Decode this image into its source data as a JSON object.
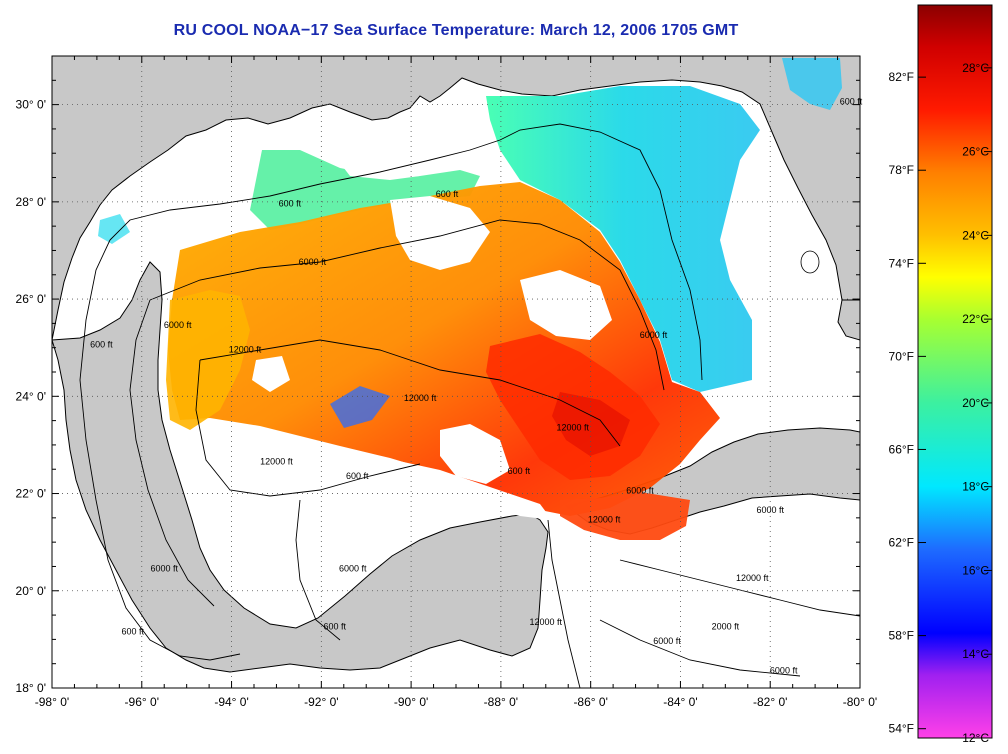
{
  "title": "RU COOL  NOAA−17  Sea Surface Temperature:  March 12, 2006 1705 GMT",
  "map": {
    "type": "satellite sea surface temperature map",
    "region": "Gulf of Mexico",
    "lon_range": [
      -98,
      -80
    ],
    "lat_range": [
      18,
      31
    ],
    "grid": "dotted",
    "land_color": "#c8c8c8",
    "cloud_color": "#ffffff",
    "lon_ticks": [
      "-98° 0'",
      "-96° 0'",
      "-94° 0'",
      "-92° 0'",
      "-90° 0'",
      "-88° 0'",
      "-86° 0'",
      "-84° 0'",
      "-82° 0'",
      "-80° 0'"
    ],
    "lat_ticks": [
      "30° 0'",
      "28° 0'",
      "26° 0'",
      "24° 0'",
      "22° 0'",
      "20° 0'",
      "18° 0'"
    ],
    "contour_labels": [
      {
        "text": "600 ft",
        "lon": -92.7,
        "lat": 27.9
      },
      {
        "text": "6000 ft",
        "lon": -92.2,
        "lat": 26.7
      },
      {
        "text": "6000 ft",
        "lon": -95.2,
        "lat": 25.4
      },
      {
        "text": "600 ft",
        "lon": -96.9,
        "lat": 25.0
      },
      {
        "text": "12000 ft",
        "lon": -93.7,
        "lat": 24.9
      },
      {
        "text": "600 ft",
        "lon": -89.2,
        "lat": 28.1
      },
      {
        "text": "6000 ft",
        "lon": -84.6,
        "lat": 25.2
      },
      {
        "text": "600 ft",
        "lon": -80.2,
        "lat": 30.0
      },
      {
        "text": "12000 ft",
        "lon": -86.4,
        "lat": 23.3
      },
      {
        "text": "12000 ft",
        "lon": -89.8,
        "lat": 23.9
      },
      {
        "text": "6000 ft",
        "lon": -84.9,
        "lat": 22.0
      },
      {
        "text": "600 ft",
        "lon": -87.6,
        "lat": 22.4
      },
      {
        "text": "12000 ft",
        "lon": -93.0,
        "lat": 22.6
      },
      {
        "text": "600 ft",
        "lon": -91.2,
        "lat": 22.3
      },
      {
        "text": "12000 ft",
        "lon": -85.7,
        "lat": 21.4
      },
      {
        "text": "6000 ft",
        "lon": -82.0,
        "lat": 21.6
      },
      {
        "text": "6000 ft",
        "lon": -95.5,
        "lat": 20.4
      },
      {
        "text": "6000 ft",
        "lon": -91.3,
        "lat": 20.4
      },
      {
        "text": "600 ft",
        "lon": -96.2,
        "lat": 19.1
      },
      {
        "text": "600 ft",
        "lon": -91.7,
        "lat": 19.2
      },
      {
        "text": "12000 ft",
        "lon": -87.0,
        "lat": 19.3
      },
      {
        "text": "12000 ft",
        "lon": -82.4,
        "lat": 20.2
      },
      {
        "text": "2000 ft",
        "lon": -83.0,
        "lat": 19.2
      },
      {
        "text": "6000 ft",
        "lon": -84.3,
        "lat": 18.9
      },
      {
        "text": "6000 ft",
        "lon": -81.7,
        "lat": 18.3
      }
    ]
  },
  "colorbar": {
    "celsius_range": [
      12,
      29.5
    ],
    "fahrenheit_range": [
      53.6,
      85.1
    ],
    "celsius_labels": [
      {
        "text": "28°C",
        "value": 28
      },
      {
        "text": "26°C",
        "value": 26
      },
      {
        "text": "24°C",
        "value": 24
      },
      {
        "text": "22°C",
        "value": 22
      },
      {
        "text": "20°C",
        "value": 20
      },
      {
        "text": "18°C",
        "value": 18
      },
      {
        "text": "16°C",
        "value": 16
      },
      {
        "text": "14°C",
        "value": 14
      },
      {
        "text": "12°C",
        "value": 12
      }
    ],
    "fahrenheit_labels": [
      {
        "text": "82°F",
        "value": 82
      },
      {
        "text": "78°F",
        "value": 78
      },
      {
        "text": "74°F",
        "value": 74
      },
      {
        "text": "70°F",
        "value": 70
      },
      {
        "text": "66°F",
        "value": 66
      },
      {
        "text": "62°F",
        "value": 62
      },
      {
        "text": "58°F",
        "value": 58
      },
      {
        "text": "54°F",
        "value": 54
      }
    ],
    "color_stops": [
      {
        "value": 12,
        "color": "#ff40e8"
      },
      {
        "value": 13.5,
        "color": "#a020f0"
      },
      {
        "value": 14.5,
        "color": "#0000ff"
      },
      {
        "value": 16.5,
        "color": "#1e6bff"
      },
      {
        "value": 18,
        "color": "#00e8ff"
      },
      {
        "value": 20,
        "color": "#3cf0a0"
      },
      {
        "value": 22,
        "color": "#a8ff30"
      },
      {
        "value": 23,
        "color": "#ffff00"
      },
      {
        "value": 24,
        "color": "#ffc000"
      },
      {
        "value": 25.5,
        "color": "#ff8000"
      },
      {
        "value": 27,
        "color": "#ff1a00"
      },
      {
        "value": 28.5,
        "color": "#d00000"
      },
      {
        "value": 29.5,
        "color": "#8b0000"
      }
    ]
  }
}
